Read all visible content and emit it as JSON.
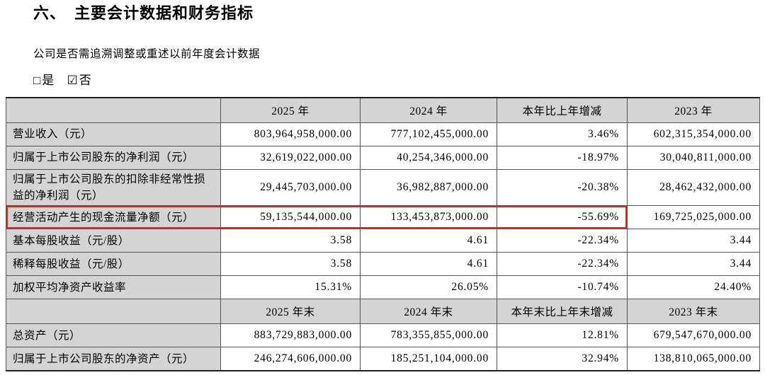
{
  "page": {
    "title_number": "六、",
    "title_text": "主要会计数据和财务指标",
    "question": "公司是否需追溯调整或重述以前年度会计数据",
    "options": [
      {
        "box": "□",
        "label": "是",
        "checked": false
      },
      {
        "box": "☑",
        "label": "否",
        "checked": true
      }
    ]
  },
  "colors": {
    "header_bg": "#d4d4d4",
    "highlight_red": "#e0231d",
    "border": "#555555"
  },
  "table": {
    "sections": [
      {
        "header": [
          "",
          "2025 年",
          "2024 年",
          "本年比上年增减",
          "2023 年"
        ],
        "rows": [
          {
            "label": "营业收入（元）",
            "values": [
              "803,964,958,000.00",
              "777,102,455,000.00",
              "3.46%",
              "602,315,354,000.00"
            ],
            "highlight": false
          },
          {
            "label": "归属于上市公司股东的净利润（元）",
            "values": [
              "32,619,022,000.00",
              "40,254,346,000.00",
              "-18.97%",
              "30,040,811,000.00"
            ],
            "highlight": false
          },
          {
            "label": "归属于上市公司股东的扣除非经常性损益的净利润（元）",
            "values": [
              "29,445,703,000.00",
              "36,982,887,000.00",
              "-20.38%",
              "28,462,432,000.00"
            ],
            "highlight": false
          },
          {
            "label": "经营活动产生的现金流量净额（元）",
            "values": [
              "59,135,544,000.00",
              "133,453,873,000.00",
              "-55.69%",
              "169,725,025,000.00"
            ],
            "highlight": true
          },
          {
            "label": "基本每股收益（元/股）",
            "values": [
              "3.58",
              "4.61",
              "-22.34%",
              "3.44"
            ],
            "highlight": false
          },
          {
            "label": "稀释每股收益（元/股）",
            "values": [
              "3.58",
              "4.61",
              "-22.34%",
              "3.44"
            ],
            "highlight": false
          },
          {
            "label": "加权平均净资产收益率",
            "values": [
              "15.31%",
              "26.05%",
              "-10.74%",
              "24.40%"
            ],
            "highlight": false
          }
        ]
      },
      {
        "header": [
          "",
          "2025 年末",
          "2024 年末",
          "本年末比上年末增减",
          "2023 年末"
        ],
        "rows": [
          {
            "label": "总资产（元）",
            "values": [
              "883,729,883,000.00",
              "783,355,855,000.00",
              "12.81%",
              "679,547,670,000.00"
            ],
            "highlight": false
          },
          {
            "label": "归属于上市公司股东的净资产（元）",
            "values": [
              "246,274,606,000.00",
              "185,251,104,000.00",
              "32.94%",
              "138,810,065,000.00"
            ],
            "highlight": false
          }
        ]
      }
    ]
  }
}
